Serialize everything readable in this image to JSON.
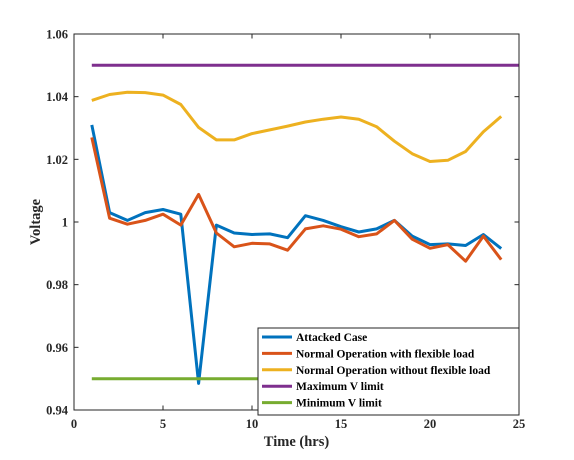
{
  "chart_data": {
    "type": "line",
    "title": "",
    "xlabel": "Time (hrs)",
    "ylabel": "Voltage",
    "xlim": [
      0,
      25
    ],
    "ylim": [
      0.94,
      1.06
    ],
    "xticks": [
      0,
      5,
      10,
      15,
      20,
      25
    ],
    "yticks": [
      0.94,
      0.96,
      0.98,
      1,
      1.02,
      1.04,
      1.06
    ],
    "xtick_labels": [
      "0",
      "5",
      "10",
      "15",
      "20",
      "25"
    ],
    "ytick_labels": [
      "0.94",
      "0.96",
      "0.98",
      "1",
      "1.02",
      "1.04",
      "1.06"
    ],
    "grid": false,
    "legend_position": "bottom-right",
    "series": [
      {
        "name": "Attacked Case",
        "color": "#0072BD",
        "x": [
          1,
          2,
          3,
          4,
          5,
          6,
          7,
          8,
          9,
          10,
          11,
          12,
          13,
          14,
          15,
          16,
          17,
          18,
          19,
          20,
          21,
          22,
          23,
          24
        ],
        "values": [
          1.031,
          1.003,
          1.0005,
          1.003,
          1.004,
          1.0025,
          0.9485,
          0.999,
          0.9965,
          0.996,
          0.9962,
          0.995,
          1.002,
          1.0005,
          0.9985,
          0.9968,
          0.9978,
          1.0005,
          0.9955,
          0.9928,
          0.993,
          0.9925,
          0.996,
          0.9915
        ]
      },
      {
        "name": "Normal Operation with flexible load",
        "color": "#D95319",
        "x": [
          1,
          2,
          3,
          4,
          5,
          6,
          7,
          8,
          9,
          10,
          11,
          12,
          13,
          14,
          15,
          16,
          17,
          18,
          19,
          20,
          21,
          22,
          23,
          24
        ],
        "values": [
          1.027,
          1.0012,
          0.9993,
          1.0005,
          1.0025,
          0.999,
          1.0088,
          0.9965,
          0.9921,
          0.9932,
          0.993,
          0.991,
          0.9978,
          0.9988,
          0.9977,
          0.9953,
          0.9962,
          1.0005,
          0.9945,
          0.9916,
          0.9928,
          0.9875,
          0.9955,
          0.988
        ]
      },
      {
        "name": "Normal Operation without flexible load",
        "color": "#EDB120",
        "x": [
          1,
          2,
          3,
          4,
          5,
          6,
          7,
          8,
          9,
          10,
          11,
          12,
          13,
          14,
          15,
          16,
          17,
          18,
          19,
          20,
          21,
          22,
          23,
          24
        ],
        "values": [
          1.0388,
          1.0407,
          1.0414,
          1.0413,
          1.0405,
          1.0375,
          1.0302,
          1.0262,
          1.0262,
          1.0282,
          1.0294,
          1.0306,
          1.0319,
          1.0328,
          1.0335,
          1.0328,
          1.0304,
          1.0258,
          1.0218,
          1.0193,
          1.0197,
          1.0225,
          1.0288,
          1.0337
        ]
      },
      {
        "name": "Maximum V limit",
        "color": "#7E2F8E",
        "x": [
          1,
          25
        ],
        "values": [
          1.05,
          1.05
        ]
      },
      {
        "name": "Minimum V limit",
        "color": "#77AC30",
        "x": [
          1,
          25
        ],
        "values": [
          0.95,
          0.95
        ]
      }
    ]
  }
}
